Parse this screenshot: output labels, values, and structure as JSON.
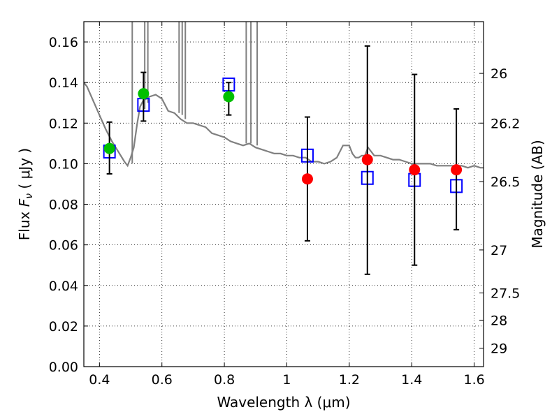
{
  "chart_data": {
    "type": "scatter",
    "title": "",
    "xlabel": "Wavelength  λ (μm)",
    "ylabel_left": "Flux  F_ν  ( μJy )",
    "ylabel_right": "Magnitude (AB)",
    "xlim": [
      0.35,
      1.63
    ],
    "ylim": [
      0.0,
      0.17
    ],
    "grid": true,
    "x_ticks": [
      0.4,
      0.6,
      0.8,
      1.0,
      1.2,
      1.4,
      1.6
    ],
    "x_tick_labels": [
      "0.4",
      "0.6",
      "0.8",
      "1",
      "1.2",
      "1.4",
      "1.6"
    ],
    "y_ticks": [
      0.0,
      0.02,
      0.04,
      0.06,
      0.08,
      0.1,
      0.12,
      0.14,
      0.16
    ],
    "y_tick_labels": [
      "0.00",
      "0.02",
      "0.04",
      "0.06",
      "0.08",
      "0.10",
      "0.12",
      "0.14",
      "0.16"
    ],
    "right_ticks": [
      {
        "flux": 0.1445,
        "label": "26"
      },
      {
        "flux": 0.12,
        "label": "26.2"
      },
      {
        "flux": 0.0912,
        "label": "26.5"
      },
      {
        "flux": 0.0575,
        "label": "27"
      },
      {
        "flux": 0.0363,
        "label": "27.5"
      },
      {
        "flux": 0.0229,
        "label": "28"
      },
      {
        "flux": 0.0091,
        "label": "29"
      }
    ],
    "series": [
      {
        "name": "model_sed",
        "kind": "line",
        "color": "#808080",
        "x": [
          0.35,
          0.36,
          0.38,
          0.4,
          0.42,
          0.44,
          0.46,
          0.48,
          0.49,
          0.5,
          0.51,
          0.52,
          0.53,
          0.54,
          0.56,
          0.58,
          0.6,
          0.62,
          0.64,
          0.66,
          0.68,
          0.7,
          0.72,
          0.74,
          0.76,
          0.78,
          0.8,
          0.82,
          0.84,
          0.86,
          0.88,
          0.9,
          0.92,
          0.94,
          0.96,
          0.98,
          1.0,
          1.02,
          1.04,
          1.06,
          1.08,
          1.1,
          1.12,
          1.14,
          1.16,
          1.18,
          1.19,
          1.2,
          1.21,
          1.22,
          1.23,
          1.24,
          1.25,
          1.26,
          1.28,
          1.3,
          1.32,
          1.34,
          1.36,
          1.38,
          1.4,
          1.42,
          1.44,
          1.46,
          1.48,
          1.5,
          1.52,
          1.54,
          1.56,
          1.58,
          1.6,
          1.62,
          1.63
        ],
        "y": [
          0.14,
          0.138,
          0.131,
          0.124,
          0.117,
          0.111,
          0.106,
          0.101,
          0.099,
          0.103,
          0.108,
          0.119,
          0.128,
          0.131,
          0.133,
          0.134,
          0.132,
          0.126,
          0.125,
          0.122,
          0.12,
          0.12,
          0.119,
          0.118,
          0.115,
          0.114,
          0.113,
          0.111,
          0.11,
          0.109,
          0.11,
          0.108,
          0.107,
          0.106,
          0.105,
          0.105,
          0.104,
          0.104,
          0.103,
          0.103,
          0.101,
          0.101,
          0.1,
          0.101,
          0.103,
          0.109,
          0.109,
          0.109,
          0.105,
          0.103,
          0.103,
          0.104,
          0.104,
          0.108,
          0.104,
          0.104,
          0.103,
          0.102,
          0.102,
          0.101,
          0.1,
          0.1,
          0.1,
          0.1,
          0.099,
          0.099,
          0.099,
          0.099,
          0.099,
          0.098,
          0.099,
          0.098,
          0.098
        ]
      },
      {
        "name": "model_photometry",
        "kind": "open-square",
        "color": "#0000ff",
        "x": [
          0.432,
          0.541,
          0.814,
          1.066,
          1.258,
          1.409,
          1.543
        ],
        "y": [
          0.106,
          0.129,
          0.139,
          0.104,
          0.093,
          0.092,
          0.089
        ]
      },
      {
        "name": "detections",
        "kind": "filled-circle",
        "color": "#00c000",
        "x": [
          0.432,
          0.541,
          0.814
        ],
        "y": [
          0.1075,
          0.1345,
          0.133
        ],
        "yerr_low": [
          0.095,
          0.121,
          0.124
        ],
        "yerr_high": [
          0.1205,
          0.145,
          0.14
        ]
      },
      {
        "name": "upper_band_measurements",
        "kind": "filled-circle",
        "color": "#ff0000",
        "x": [
          1.066,
          1.258,
          1.409,
          1.543
        ],
        "y": [
          0.0925,
          0.102,
          0.097,
          0.097
        ],
        "yerr_low": [
          0.062,
          0.0455,
          0.05,
          0.0675
        ],
        "yerr_high": [
          0.123,
          0.158,
          0.144,
          0.127
        ]
      }
    ]
  }
}
